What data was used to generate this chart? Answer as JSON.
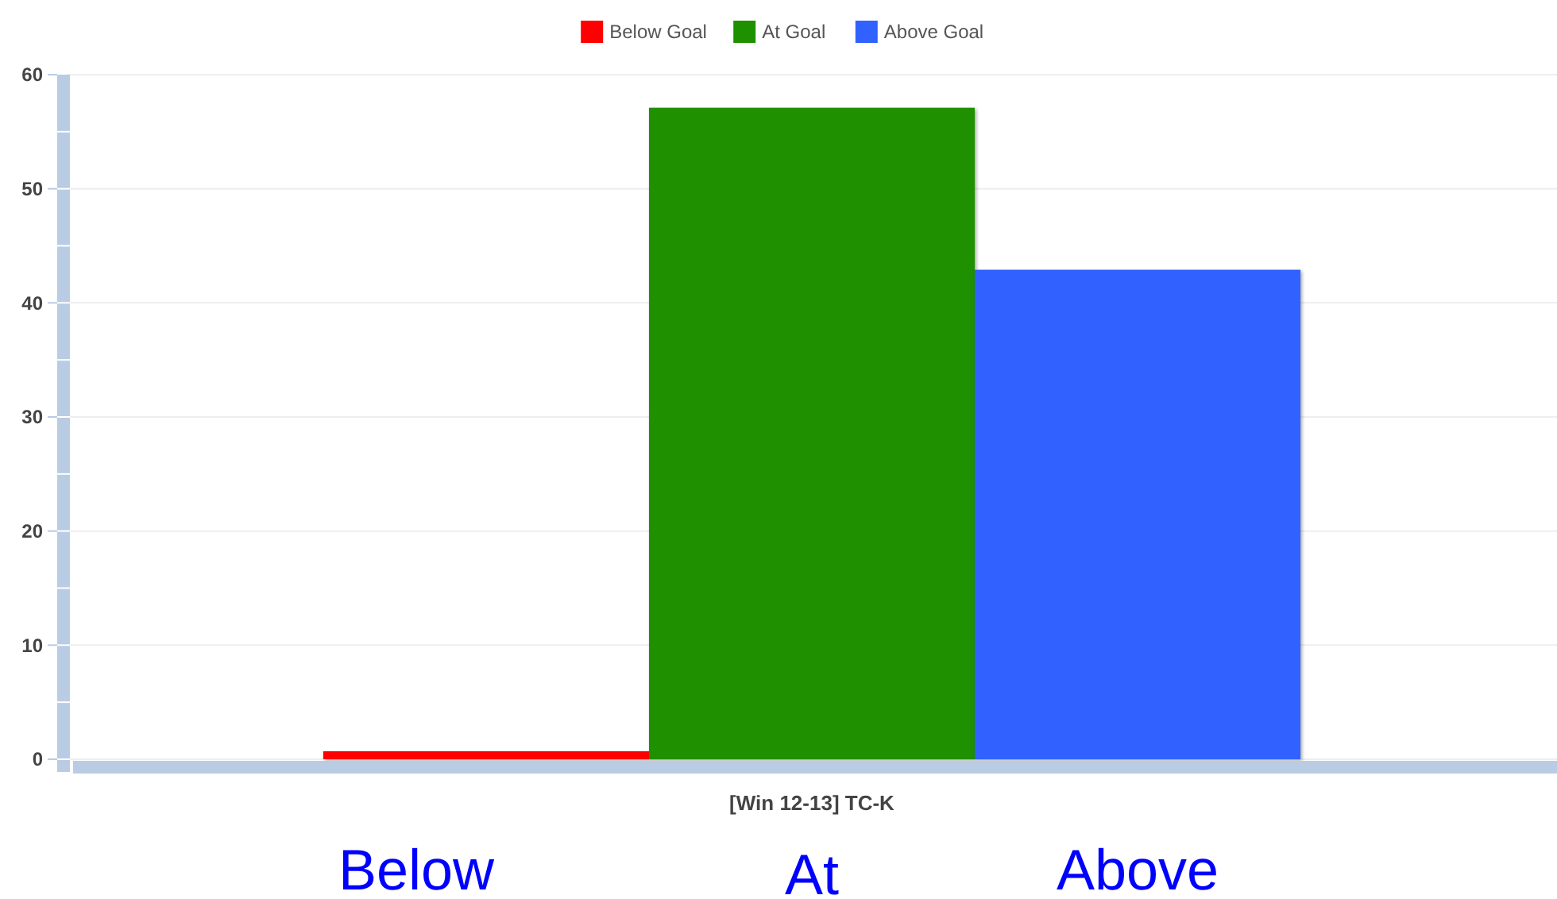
{
  "chart_data": {
    "type": "bar",
    "categories": [
      "[Win 12-13] TC-K"
    ],
    "series": [
      {
        "name": "Below Goal",
        "color": "#ff0000",
        "values": [
          0.7
        ]
      },
      {
        "name": "At Goal",
        "color": "#1f9100",
        "values": [
          57.1
        ]
      },
      {
        "name": "Above Goal",
        "color": "#3162ff",
        "values": [
          42.9
        ]
      }
    ],
    "ylim": [
      0,
      60
    ],
    "yticks": [
      0,
      10,
      20,
      30,
      40,
      50,
      60
    ],
    "grid": "y",
    "legend": "top",
    "annotations": [
      "Below",
      "At",
      "Above"
    ]
  }
}
